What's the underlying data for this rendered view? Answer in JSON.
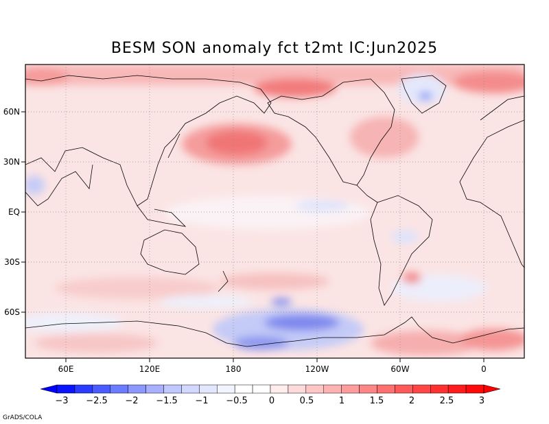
{
  "title": "BESM  SON anomaly fct t2mt IC:Jun2025",
  "footer": "GrADS/COLA",
  "axes": {
    "lon_ticks": [
      "60E",
      "120E",
      "180",
      "120W",
      "60W",
      "0"
    ],
    "lat_ticks": [
      "60N",
      "30N",
      "EQ",
      "30S",
      "60S"
    ]
  },
  "colorbar": {
    "labels": [
      "−3",
      "−2.5",
      "−2",
      "−1.5",
      "−1",
      "−0.5",
      "0",
      "0.5",
      "1",
      "1.5",
      "2",
      "2.5",
      "3"
    ],
    "colors": [
      "#0a14ff",
      "#2a3cff",
      "#4a5cff",
      "#6a7cff",
      "#8c98ff",
      "#a8b0ff",
      "#c0c8ff",
      "#d2d8ff",
      "#e2e6ff",
      "#f2f4ff",
      "#ffffff",
      "#ffffff",
      "#ffecec",
      "#ffdada",
      "#ffc6c6",
      "#ffb2b2",
      "#ff9c9c",
      "#ff8686",
      "#ff7070",
      "#ff5a5a",
      "#ff4646",
      "#ff3030",
      "#ff1c1c",
      "#ff0a0a"
    ],
    "low_arrow_color": "#0000ff",
    "high_arrow_color": "#ff0000"
  },
  "map": {
    "background_anomaly": "#fbe6e6",
    "projection": "cylindrical, centered 180",
    "grid": "dotted 30°"
  }
}
